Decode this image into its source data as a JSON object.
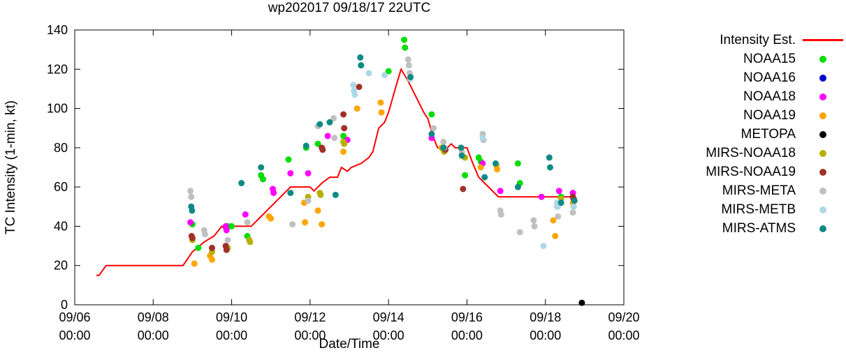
{
  "chart_data": {
    "type": "scatter",
    "title": "wp202017 09/18/17 22UTC",
    "xlabel": "Date/Time",
    "ylabel": "TC Intensity (1-min, kt)",
    "x_unit": "days since 09/06 00:00",
    "x_range": [
      0,
      14
    ],
    "y_range": [
      0,
      140
    ],
    "x_ticks": [
      {
        "day": 0,
        "label": [
          "09/06",
          "00:00"
        ]
      },
      {
        "day": 2,
        "label": [
          "09/08",
          "00:00"
        ]
      },
      {
        "day": 4,
        "label": [
          "09/10",
          "00:00"
        ]
      },
      {
        "day": 6,
        "label": [
          "09/12",
          "00:00"
        ]
      },
      {
        "day": 8,
        "label": [
          "09/14",
          "00:00"
        ]
      },
      {
        "day": 10,
        "label": [
          "09/16",
          "00:00"
        ]
      },
      {
        "day": 12,
        "label": [
          "09/18",
          "00:00"
        ]
      },
      {
        "day": 14,
        "label": [
          "09/20",
          "00:00"
        ]
      }
    ],
    "y_ticks": [
      0,
      20,
      40,
      60,
      80,
      100,
      120,
      140
    ],
    "line_series": {
      "name": "Intensity Est.",
      "color": "#ff0000",
      "points": [
        [
          0.55,
          15
        ],
        [
          0.62,
          15
        ],
        [
          0.8,
          20
        ],
        [
          2.76,
          20
        ],
        [
          3.0,
          27
        ],
        [
          3.3,
          32
        ],
        [
          3.55,
          35
        ],
        [
          3.75,
          40
        ],
        [
          3.85,
          38
        ],
        [
          3.97,
          40
        ],
        [
          4.5,
          40
        ],
        [
          4.75,
          45
        ],
        [
          5.0,
          50
        ],
        [
          5.25,
          55
        ],
        [
          5.5,
          60
        ],
        [
          6.0,
          60
        ],
        [
          6.1,
          58
        ],
        [
          6.3,
          62
        ],
        [
          6.5,
          65
        ],
        [
          6.7,
          65
        ],
        [
          6.8,
          70
        ],
        [
          6.95,
          68
        ],
        [
          7.05,
          70
        ],
        [
          7.3,
          72
        ],
        [
          7.5,
          75
        ],
        [
          7.6,
          78
        ],
        [
          7.75,
          90
        ],
        [
          7.9,
          93
        ],
        [
          8.0,
          98
        ],
        [
          8.1,
          105
        ],
        [
          8.2,
          112
        ],
        [
          8.32,
          120
        ],
        [
          8.5,
          114
        ],
        [
          8.7,
          106
        ],
        [
          8.9,
          98
        ],
        [
          9.0,
          95
        ],
        [
          9.15,
          85
        ],
        [
          9.25,
          80
        ],
        [
          9.5,
          80
        ],
        [
          9.6,
          82
        ],
        [
          9.7,
          80
        ],
        [
          10.0,
          80
        ],
        [
          10.15,
          72
        ],
        [
          10.3,
          65
        ],
        [
          10.45,
          62
        ],
        [
          10.55,
          60
        ],
        [
          10.7,
          57
        ],
        [
          10.8,
          55
        ],
        [
          12.7,
          55
        ]
      ]
    },
    "scatter_series": [
      {
        "name": "NOAA15",
        "color": "#00dd00",
        "points": [
          [
            3.0,
            41
          ],
          [
            3.15,
            29
          ],
          [
            3.9,
            40
          ],
          [
            4.0,
            40
          ],
          [
            4.4,
            35
          ],
          [
            4.75,
            66
          ],
          [
            4.8,
            64
          ],
          [
            5.45,
            74
          ],
          [
            5.9,
            80
          ],
          [
            6.2,
            82
          ],
          [
            6.85,
            86
          ],
          [
            6.9,
            84
          ],
          [
            8.0,
            119
          ],
          [
            8.4,
            135
          ],
          [
            8.42,
            131
          ],
          [
            9.1,
            97
          ],
          [
            9.95,
            66
          ],
          [
            10.3,
            75
          ],
          [
            10.35,
            73
          ],
          [
            11.3,
            72
          ],
          [
            11.35,
            62
          ],
          [
            11.9,
            55
          ],
          [
            12.4,
            55
          ]
        ]
      },
      {
        "name": "NOAA16",
        "color": "#0000cc",
        "points": []
      },
      {
        "name": "NOAA18",
        "color": "#ff00ff",
        "points": [
          [
            2.95,
            42
          ],
          [
            3.85,
            40
          ],
          [
            3.87,
            38
          ],
          [
            4.35,
            46
          ],
          [
            5.05,
            59
          ],
          [
            5.07,
            57
          ],
          [
            5.5,
            67
          ],
          [
            5.95,
            67
          ],
          [
            6.45,
            86
          ],
          [
            6.95,
            84
          ],
          [
            9.1,
            85
          ],
          [
            10.4,
            72
          ],
          [
            10.85,
            58
          ],
          [
            11.9,
            55
          ],
          [
            12.35,
            58
          ],
          [
            12.7,
            57
          ]
        ]
      },
      {
        "name": "NOAA19",
        "color": "#ffa500",
        "points": [
          [
            3.05,
            21
          ],
          [
            3.45,
            25
          ],
          [
            3.5,
            23
          ],
          [
            4.95,
            45
          ],
          [
            5.0,
            44
          ],
          [
            5.85,
            52
          ],
          [
            5.87,
            42
          ],
          [
            6.2,
            48
          ],
          [
            6.3,
            41
          ],
          [
            6.85,
            78
          ],
          [
            7.2,
            100
          ],
          [
            7.8,
            103
          ],
          [
            7.82,
            98
          ],
          [
            9.35,
            80
          ],
          [
            10.35,
            70
          ],
          [
            10.75,
            71
          ],
          [
            10.77,
            69
          ],
          [
            12.2,
            43
          ],
          [
            12.25,
            35
          ],
          [
            12.7,
            52
          ],
          [
            12.72,
            50
          ]
        ]
      },
      {
        "name": "METOPA",
        "color": "#000000",
        "points": [
          [
            12.93,
            1
          ]
        ]
      },
      {
        "name": "MIRS-NOAA18",
        "color": "#b8b000",
        "points": [
          [
            3.0,
            33
          ],
          [
            3.5,
            27
          ],
          [
            3.9,
            29
          ],
          [
            4.45,
            33
          ],
          [
            4.47,
            32
          ],
          [
            5.95,
            55
          ],
          [
            6.25,
            57
          ],
          [
            6.27,
            56
          ],
          [
            6.85,
            83
          ],
          [
            6.87,
            82
          ],
          [
            9.4,
            79
          ],
          [
            9.42,
            78
          ],
          [
            9.95,
            75
          ],
          [
            12.4,
            54
          ]
        ]
      },
      {
        "name": "MIRS-NOAA19",
        "color": "#a03028",
        "points": [
          [
            2.98,
            35
          ],
          [
            3.0,
            34
          ],
          [
            3.5,
            29
          ],
          [
            3.85,
            30
          ],
          [
            3.87,
            28
          ],
          [
            6.3,
            80
          ],
          [
            6.32,
            79
          ],
          [
            6.85,
            97
          ],
          [
            6.87,
            90
          ],
          [
            7.25,
            111
          ],
          [
            9.45,
            79
          ],
          [
            9.9,
            59
          ],
          [
            12.7,
            55
          ],
          [
            12.72,
            54
          ]
        ]
      },
      {
        "name": "MIRS-META",
        "color": "#c0c0c0",
        "points": [
          [
            2.95,
            58
          ],
          [
            2.97,
            55
          ],
          [
            3.3,
            38
          ],
          [
            3.32,
            36
          ],
          [
            3.9,
            33
          ],
          [
            4.4,
            42
          ],
          [
            5.55,
            41
          ],
          [
            5.95,
            53
          ],
          [
            6.2,
            91
          ],
          [
            6.6,
            95
          ],
          [
            6.62,
            85
          ],
          [
            8.5,
            125
          ],
          [
            8.52,
            122
          ],
          [
            8.54,
            118
          ],
          [
            9.15,
            90
          ],
          [
            9.4,
            83
          ],
          [
            9.42,
            80
          ],
          [
            9.85,
            80
          ],
          [
            9.87,
            78
          ],
          [
            10.4,
            87
          ],
          [
            10.42,
            84
          ],
          [
            10.85,
            48
          ],
          [
            10.87,
            46
          ],
          [
            11.35,
            37
          ],
          [
            11.7,
            43
          ],
          [
            11.72,
            40
          ],
          [
            12.3,
            50
          ],
          [
            12.32,
            45
          ],
          [
            12.7,
            47
          ]
        ]
      },
      {
        "name": "MIRS-METB",
        "color": "#add8e6",
        "points": [
          [
            7.1,
            112
          ],
          [
            7.12,
            109
          ],
          [
            7.14,
            107
          ],
          [
            7.5,
            118
          ],
          [
            7.9,
            117
          ],
          [
            8.55,
            115
          ],
          [
            10.4,
            85
          ],
          [
            11.95,
            30
          ],
          [
            12.3,
            52
          ],
          [
            12.32,
            50
          ],
          [
            12.72,
            50
          ]
        ]
      },
      {
        "name": "MIRS-ATMS",
        "color": "#0e8a84",
        "points": [
          [
            2.97,
            50
          ],
          [
            2.99,
            48
          ],
          [
            4.25,
            62
          ],
          [
            4.75,
            70
          ],
          [
            5.5,
            57
          ],
          [
            5.9,
            81
          ],
          [
            6.25,
            92
          ],
          [
            6.5,
            93
          ],
          [
            6.65,
            56
          ],
          [
            7.28,
            126
          ],
          [
            7.3,
            122
          ],
          [
            8.56,
            116
          ],
          [
            9.1,
            87
          ],
          [
            9.4,
            80
          ],
          [
            9.85,
            80
          ],
          [
            9.87,
            76
          ],
          [
            10.45,
            65
          ],
          [
            10.73,
            72
          ],
          [
            11.3,
            60
          ],
          [
            12.1,
            75
          ],
          [
            12.12,
            70
          ],
          [
            12.4,
            52
          ],
          [
            12.74,
            53
          ]
        ]
      }
    ],
    "legend_position": "right"
  }
}
